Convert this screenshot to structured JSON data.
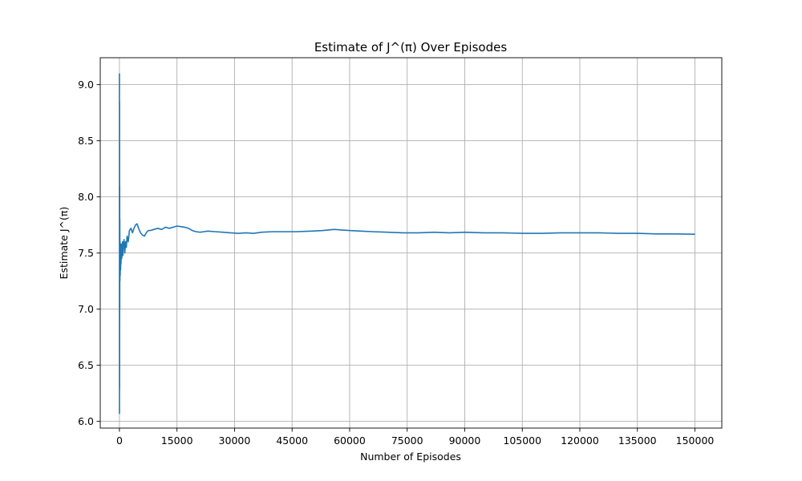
{
  "chart_data": {
    "type": "line",
    "title": "Estimate of J^(π) Over Episodes",
    "xlabel": "Number of Episodes",
    "ylabel": "Estimate J^(π)",
    "xlim": [
      -5000,
      157000
    ],
    "ylim": [
      5.94,
      9.24
    ],
    "xticks": [
      0,
      15000,
      30000,
      45000,
      60000,
      75000,
      90000,
      105000,
      120000,
      135000,
      150000
    ],
    "xtick_labels": [
      "0",
      "15000",
      "30000",
      "45000",
      "60000",
      "75000",
      "90000",
      "105000",
      "120000",
      "135000",
      "150000"
    ],
    "yticks": [
      6.0,
      6.5,
      7.0,
      7.5,
      8.0,
      8.5,
      9.0
    ],
    "ytick_labels": [
      "6.0",
      "6.5",
      "7.0",
      "7.5",
      "8.0",
      "8.5",
      "9.0"
    ],
    "grid": true,
    "color": "#1f77b4",
    "series": [
      {
        "x": [
          1,
          10,
          25,
          40,
          60,
          80,
          100,
          130,
          160,
          200,
          250,
          300,
          350,
          400,
          500,
          600,
          700,
          800,
          900,
          1000,
          1200,
          1400,
          1600,
          1800,
          2000,
          2300,
          2600,
          3000,
          3400,
          3800,
          4200,
          4600,
          5000,
          5500,
          6000,
          6500,
          7000,
          7500,
          8000,
          9000,
          10000,
          11000,
          12000,
          13000,
          14000,
          15000,
          16000,
          17000,
          18000,
          19000,
          20000,
          21000,
          22000,
          23000,
          25000,
          27000,
          29000,
          31000,
          33000,
          35000,
          37000,
          40000,
          43000,
          46000,
          50000,
          53000,
          56000,
          58000,
          60000,
          63000,
          66000,
          70000,
          74000,
          78000,
          82000,
          86000,
          90000,
          95000,
          100000,
          105000,
          110000,
          115000,
          120000,
          125000,
          130000,
          135000,
          140000,
          145000,
          150000
        ],
        "values": [
          9.1,
          6.07,
          8.85,
          6.3,
          8.1,
          7.0,
          7.8,
          7.25,
          7.6,
          7.3,
          7.55,
          7.35,
          7.5,
          7.4,
          7.58,
          7.45,
          7.5,
          7.6,
          7.48,
          7.55,
          7.62,
          7.5,
          7.6,
          7.55,
          7.65,
          7.6,
          7.7,
          7.72,
          7.68,
          7.72,
          7.75,
          7.76,
          7.72,
          7.68,
          7.66,
          7.65,
          7.68,
          7.7,
          7.7,
          7.71,
          7.72,
          7.71,
          7.73,
          7.72,
          7.73,
          7.74,
          7.735,
          7.73,
          7.72,
          7.7,
          7.69,
          7.685,
          7.69,
          7.695,
          7.69,
          7.685,
          7.68,
          7.675,
          7.68,
          7.675,
          7.685,
          7.69,
          7.69,
          7.69,
          7.695,
          7.7,
          7.71,
          7.705,
          7.7,
          7.695,
          7.69,
          7.685,
          7.68,
          7.68,
          7.685,
          7.68,
          7.685,
          7.68,
          7.68,
          7.675,
          7.675,
          7.68,
          7.68,
          7.68,
          7.675,
          7.675,
          7.67,
          7.67,
          7.667
        ]
      }
    ]
  }
}
